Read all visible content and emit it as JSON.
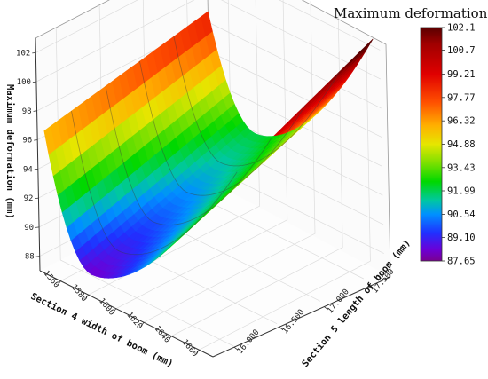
{
  "chart_data": {
    "type": "surface",
    "title": "Maximum deformation",
    "zlabel": "Maximum deformation (mm)",
    "xlabel": "Section 4 width of boom (mm)",
    "ylabel": "Section 5 length of boom (mm)",
    "zlim": [
      87,
      103
    ],
    "z_ticks": [
      "88",
      "90",
      "92",
      "94",
      "96",
      "98",
      "100",
      "102"
    ],
    "x_ticks": [
      "1560",
      "1580",
      "1600",
      "1620",
      "1640",
      "1660"
    ],
    "y_ticks": [
      "16.000",
      "16.500",
      "17.000",
      "17.500"
    ],
    "colorbar": {
      "min": 87.65,
      "max": 102.1,
      "ticks": [
        "102.1",
        "100.7",
        "99.21",
        "97.77",
        "96.32",
        "94.88",
        "93.43",
        "91.99",
        "90.54",
        "89.10",
        "87.65"
      ]
    },
    "surface_samples": [
      {
        "width": 1550,
        "length": 15.75,
        "deformation": 97.9
      },
      {
        "width": 1550,
        "length": 17.75,
        "deformation": 100.2
      },
      {
        "width": 1600,
        "length": 15.75,
        "deformation": 88.2
      },
      {
        "width": 1600,
        "length": 17.75,
        "deformation": 92.2
      },
      {
        "width": 1660,
        "length": 15.75,
        "deformation": 98.0
      },
      {
        "width": 1660,
        "length": 17.75,
        "deformation": 101.8
      }
    ]
  }
}
